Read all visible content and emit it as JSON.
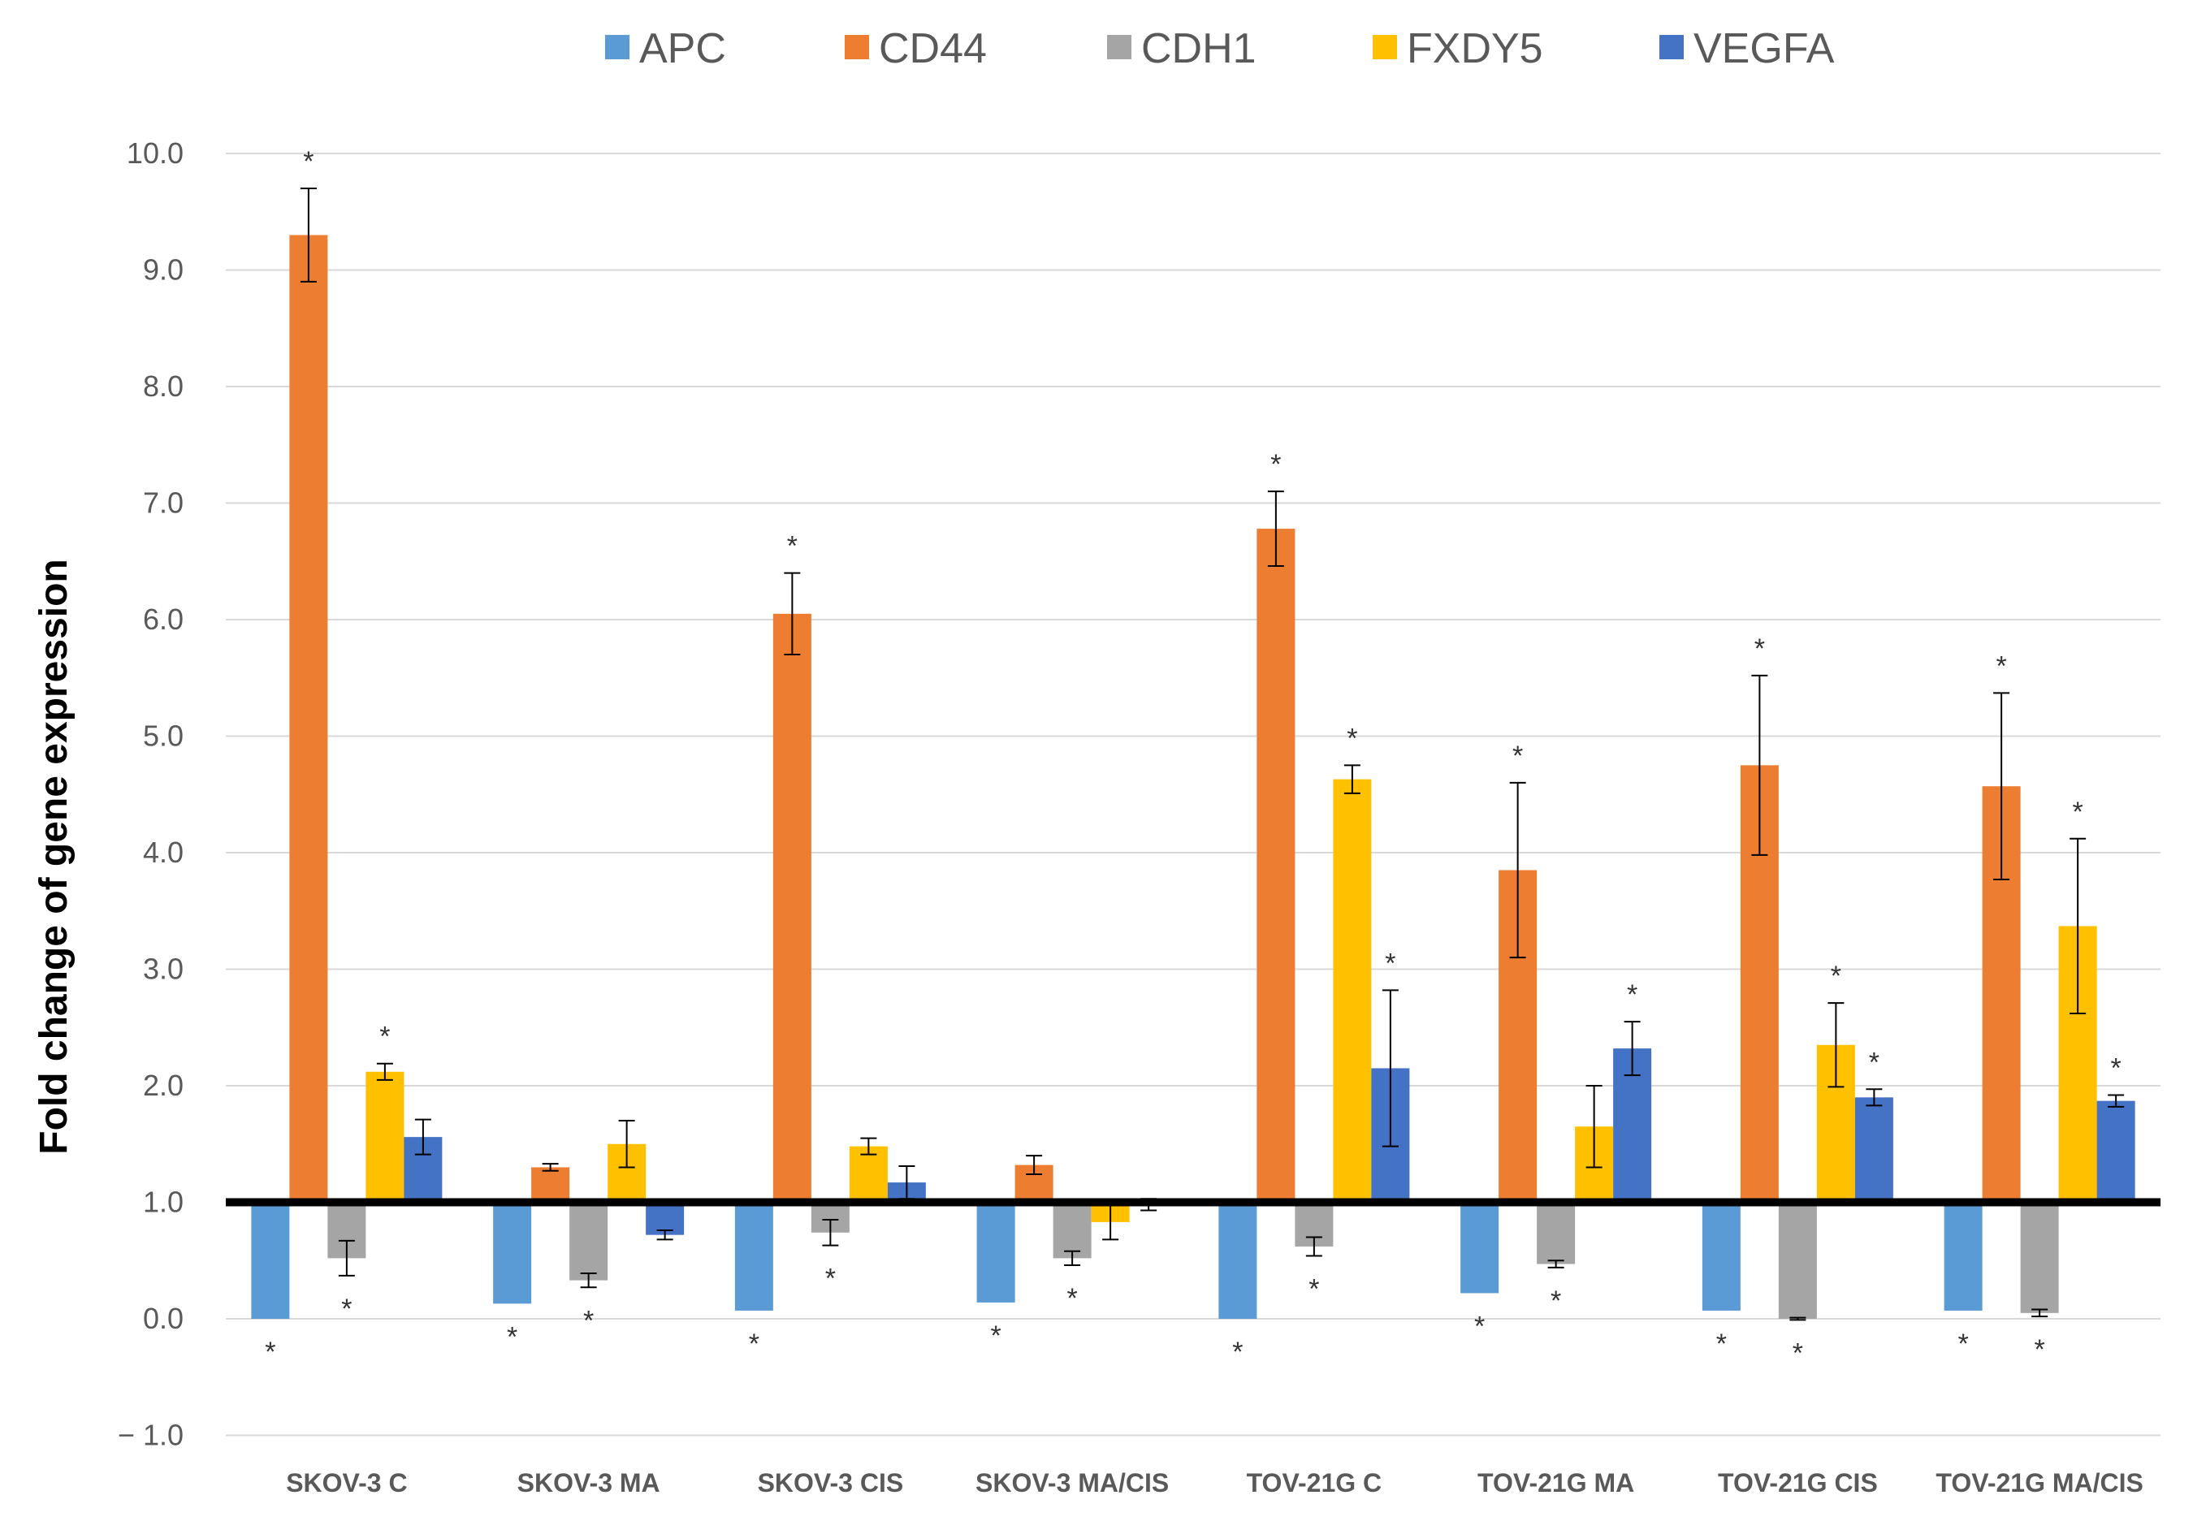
{
  "chart_data": {
    "type": "bar",
    "title": "",
    "xlabel": "",
    "ylabel": "Fold change of gene expression",
    "ylim": [
      -1.0,
      10.0
    ],
    "yticks": [
      -1.0,
      0.0,
      1.0,
      2.0,
      3.0,
      4.0,
      5.0,
      6.0,
      7.0,
      8.0,
      9.0,
      10.0
    ],
    "ytick_labels": [
      "− 1.0",
      "0.0",
      "1.0",
      "2.0",
      "3.0",
      "4.0",
      "5.0",
      "6.0",
      "7.0",
      "8.0",
      "9.0",
      "10.0"
    ],
    "baseline": 1.0,
    "grid": true,
    "legend_position": "top-center",
    "significance_marker": "*",
    "categories": [
      "SKOV-3 C",
      "SKOV-3 MA",
      "SKOV-3 CIS",
      "SKOV-3 MA/CIS",
      "TOV-21G C",
      "TOV-21G MA",
      "TOV-21G CIS",
      "TOV-21G MA/CIS"
    ],
    "series": [
      {
        "name": "APC",
        "color": "#5B9BD5",
        "values": [
          0.0,
          0.13,
          0.07,
          0.14,
          0.0,
          0.22,
          0.07,
          0.07
        ],
        "errors": [
          0.0,
          0.0,
          0.0,
          0.0,
          0.0,
          0.0,
          0.0,
          0.0
        ],
        "significant": [
          true,
          true,
          true,
          true,
          true,
          true,
          true,
          true
        ]
      },
      {
        "name": "CD44",
        "color": "#ED7D31",
        "values": [
          9.3,
          1.3,
          6.05,
          1.32,
          6.78,
          3.85,
          4.75,
          4.57
        ],
        "errors": [
          0.4,
          0.03,
          0.35,
          0.08,
          0.32,
          0.75,
          0.77,
          0.8
        ],
        "significant": [
          true,
          false,
          true,
          false,
          true,
          true,
          true,
          true
        ]
      },
      {
        "name": "CDH1",
        "color": "#A5A5A5",
        "values": [
          0.52,
          0.33,
          0.74,
          0.52,
          0.62,
          0.47,
          0.0,
          0.05
        ],
        "errors": [
          0.15,
          0.06,
          0.11,
          0.06,
          0.08,
          0.03,
          0.01,
          0.03
        ],
        "significant": [
          true,
          true,
          true,
          true,
          true,
          true,
          true,
          true
        ]
      },
      {
        "name": "FXDY5",
        "color": "#FFC000",
        "values": [
          2.12,
          1.5,
          1.48,
          0.83,
          4.63,
          1.65,
          2.35,
          3.37
        ],
        "errors": [
          0.07,
          0.2,
          0.07,
          0.15,
          0.12,
          0.35,
          0.36,
          0.75
        ],
        "significant": [
          true,
          false,
          false,
          false,
          true,
          false,
          true,
          true
        ]
      },
      {
        "name": "VEGFA",
        "color": "#4472C4",
        "values": [
          1.56,
          0.72,
          1.17,
          0.98,
          2.15,
          2.32,
          1.9,
          1.87
        ],
        "errors": [
          0.15,
          0.04,
          0.14,
          0.05,
          0.67,
          0.23,
          0.07,
          0.05
        ],
        "significant": [
          false,
          false,
          false,
          false,
          true,
          true,
          true,
          true
        ]
      }
    ]
  }
}
